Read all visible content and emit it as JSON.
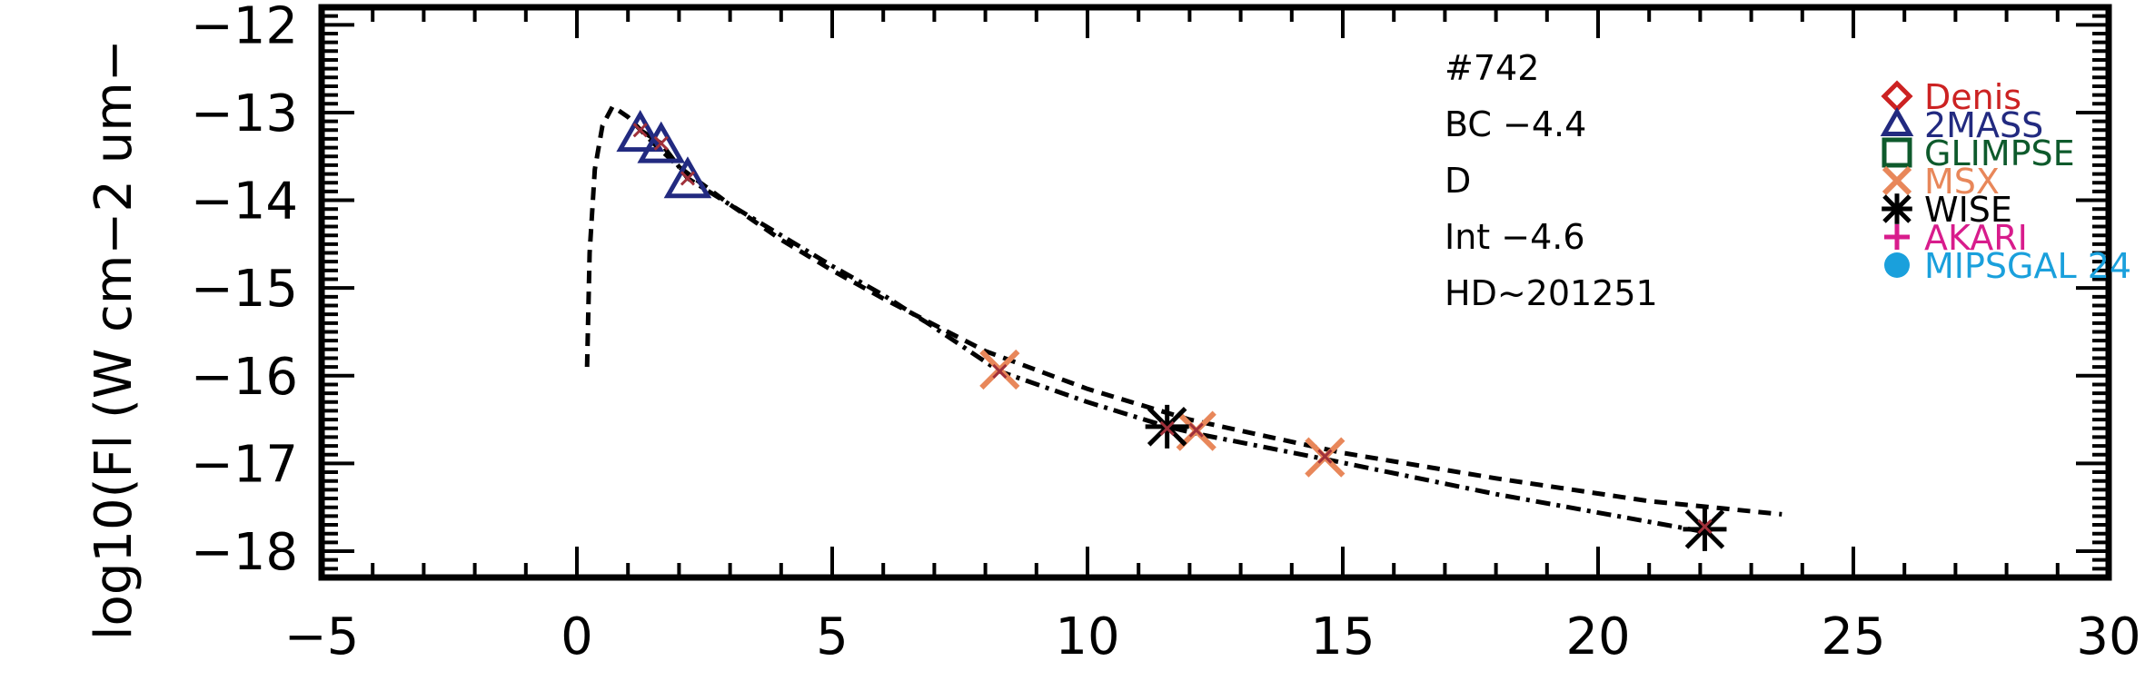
{
  "chart_data": {
    "type": "scatter",
    "title": "",
    "xlabel": "",
    "ylabel": "log10(Fl (W cm−2 um−",
    "xlim": [
      -5,
      30
    ],
    "ylim": [
      -18.3,
      -11.8
    ],
    "xticks": [
      -5,
      0,
      5,
      10,
      15,
      20,
      25,
      30
    ],
    "xtick_labels": [
      "−5",
      "0",
      "5",
      "10",
      "15",
      "20",
      "25",
      "30"
    ],
    "yticks": [
      -12,
      -13,
      -14,
      -15,
      -16,
      -17,
      -18
    ],
    "ytick_labels": [
      "−12",
      "−13",
      "−14",
      "−15",
      "−16",
      "−17",
      "−18"
    ],
    "grid": false,
    "legend_position": "top-right",
    "annotations": [
      "#742",
      "BC −4.4",
      "D",
      "Int −4.6",
      "HD~201251"
    ],
    "legend": [
      {
        "name": "Denis",
        "marker": "diamond",
        "color": "#cc2222"
      },
      {
        "name": "2MASS",
        "marker": "triangle",
        "color": "#222a80"
      },
      {
        "name": "GLIMPSE",
        "marker": "square",
        "color": "#0e5a2c"
      },
      {
        "name": "MSX",
        "marker": "x",
        "color": "#e8875a"
      },
      {
        "name": "WISE",
        "marker": "asterisk",
        "color": "#000000"
      },
      {
        "name": "AKARI",
        "marker": "plus",
        "color": "#d81c8c"
      },
      {
        "name": "MIPSGAL 24",
        "marker": "circle",
        "color": "#1aa0dc"
      }
    ],
    "series": [
      {
        "name": "2MASS",
        "marker": "triangle",
        "color": "#222a80",
        "x": [
          1.24,
          1.65,
          2.17
        ],
        "y": [
          -13.25,
          -13.38,
          -13.78
        ]
      },
      {
        "name": "MSX",
        "marker": "x",
        "color": "#e8875a",
        "x": [
          8.28,
          12.13,
          14.65
        ],
        "y": [
          -15.93,
          -16.63,
          -16.93
        ]
      },
      {
        "name": "WISE",
        "marker": "asterisk",
        "color": "#000000",
        "x": [
          11.56,
          22.09
        ],
        "y": [
          -16.58,
          -17.75
        ]
      },
      {
        "name": "",
        "marker": "small-x",
        "color": "#a0303a",
        "x": [
          1.24,
          1.65,
          2.17,
          8.28,
          11.56,
          12.13,
          14.65,
          22.09
        ],
        "y": [
          -13.2,
          -13.35,
          -13.75,
          -15.95,
          -16.6,
          -16.62,
          -16.92,
          -17.72
        ]
      }
    ],
    "curves": [
      {
        "style": "dashed",
        "color": "#000000",
        "x": [
          0.2,
          0.25,
          0.35,
          0.5,
          0.7,
          1.0,
          1.5,
          2.0,
          3.0,
          4.0,
          5.0,
          6.0,
          8.0,
          10.0,
          12.0,
          15.0,
          18.0,
          21.0,
          23.6
        ],
        "y": [
          -15.9,
          -14.6,
          -13.65,
          -13.15,
          -12.93,
          -13.05,
          -13.35,
          -13.62,
          -14.05,
          -14.45,
          -14.8,
          -15.12,
          -15.72,
          -16.15,
          -16.5,
          -16.88,
          -17.17,
          -17.43,
          -17.58
        ]
      },
      {
        "style": "dash-dot",
        "color": "#000000",
        "x": [
          1.24,
          1.65,
          2.17,
          3.0,
          4.0,
          5.0,
          6.0,
          7.0,
          8.28,
          10.0,
          11.56,
          12.13,
          14.65,
          18.0,
          22.09
        ],
        "y": [
          -13.2,
          -13.35,
          -13.75,
          -14.05,
          -14.4,
          -14.75,
          -15.08,
          -15.45,
          -15.95,
          -16.3,
          -16.58,
          -16.66,
          -16.95,
          -17.35,
          -17.78
        ]
      }
    ]
  }
}
